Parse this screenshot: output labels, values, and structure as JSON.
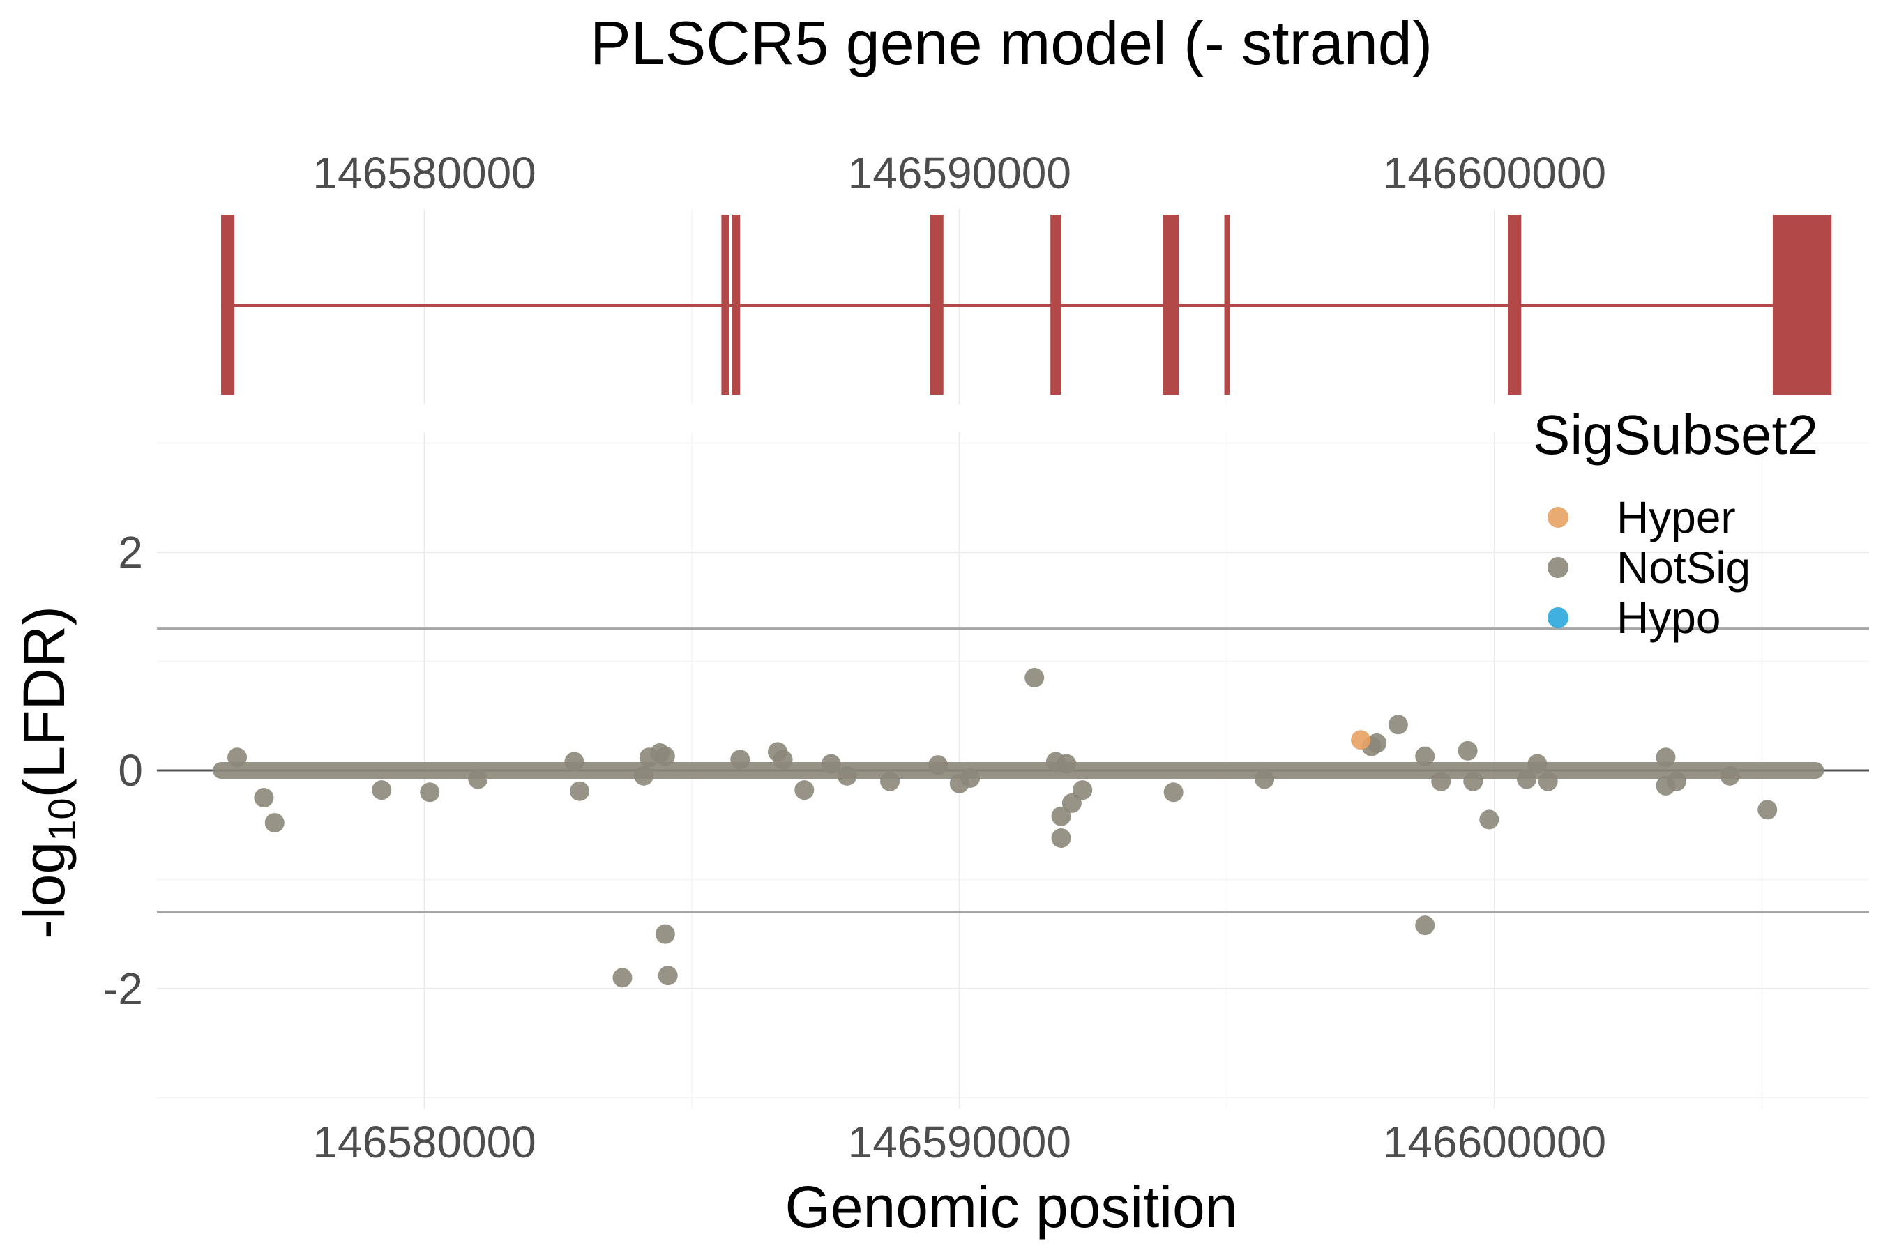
{
  "chart_data": [
    {
      "type": "gene_model",
      "title": "PLSCR5 gene model (- strand)",
      "xlim": [
        146575000,
        146607000
      ],
      "x_ticks": [
        146580000,
        146590000,
        146600000
      ],
      "tick_labels": [
        "146580000",
        "146590000",
        "146600000"
      ],
      "grid": true,
      "colors": {
        "exon": "#b34848",
        "intron": "#b34848"
      },
      "intron_span": [
        146576200,
        146606100
      ],
      "exons": [
        {
          "start": 146576200,
          "end": 146576450
        },
        {
          "start": 146585550,
          "end": 146585700
        },
        {
          "start": 146585750,
          "end": 146585900
        },
        {
          "start": 146589450,
          "end": 146589700
        },
        {
          "start": 146591700,
          "end": 146591900
        },
        {
          "start": 146593800,
          "end": 146594100
        },
        {
          "start": 146594950,
          "end": 146595050
        },
        {
          "start": 146600250,
          "end": 146600500
        },
        {
          "start": 146605200,
          "end": 146606300
        }
      ]
    },
    {
      "type": "scatter",
      "xlabel": "Genomic position",
      "ylabel_main": "-log",
      "ylabel_sub": "10",
      "ylabel_tail": "(LFDR)",
      "xlim": [
        146575000,
        146607000
      ],
      "ylim": [
        -3.1,
        3.1
      ],
      "x_ticks": [
        146580000,
        146590000,
        146600000
      ],
      "tick_labels": [
        "146580000",
        "146590000",
        "146600000"
      ],
      "y_ticks": [
        2,
        0,
        -2
      ],
      "y_tick_labels": [
        "2",
        "0",
        "-2"
      ],
      "grid": true,
      "reference_lines": [
        1.3,
        0,
        -1.3
      ],
      "legend": {
        "title": "SigSubset2",
        "position": "top-right",
        "entries": [
          {
            "name": "Hyper",
            "color": "#e8a263"
          },
          {
            "name": "NotSig",
            "color": "#8c877a"
          },
          {
            "name": "Hypo",
            "color": "#2aa7dc"
          }
        ]
      },
      "baseline_x_range": [
        146576200,
        146606000
      ],
      "series": [
        {
          "name": "NotSig",
          "color": "#8c877a",
          "points": [
            [
              146576500,
              0.12
            ],
            [
              146577000,
              -0.25
            ],
            [
              146577200,
              -0.48
            ],
            [
              146579200,
              -0.18
            ],
            [
              146580100,
              -0.2
            ],
            [
              146581000,
              -0.08
            ],
            [
              146582800,
              0.08
            ],
            [
              146582900,
              -0.19
            ],
            [
              146583700,
              -1.9
            ],
            [
              146584100,
              -0.05
            ],
            [
              146584200,
              0.12
            ],
            [
              146584400,
              0.16
            ],
            [
              146584500,
              0.13
            ],
            [
              146584550,
              -1.88
            ],
            [
              146584500,
              -1.5
            ],
            [
              146585900,
              0.1
            ],
            [
              146586600,
              0.17
            ],
            [
              146586700,
              0.1
            ],
            [
              146587100,
              -0.18
            ],
            [
              146587600,
              0.06
            ],
            [
              146587900,
              -0.05
            ],
            [
              146588700,
              -0.1
            ],
            [
              146589600,
              0.05
            ],
            [
              146590000,
              -0.12
            ],
            [
              146590200,
              -0.07
            ],
            [
              146591400,
              0.85
            ],
            [
              146591800,
              0.08
            ],
            [
              146591900,
              -0.42
            ],
            [
              146591900,
              -0.62
            ],
            [
              146592000,
              0.06
            ],
            [
              146592100,
              -0.3
            ],
            [
              146592300,
              -0.18
            ],
            [
              146594000,
              -0.2
            ],
            [
              146595700,
              -0.08
            ],
            [
              146597700,
              0.22
            ],
            [
              146597800,
              0.25
            ],
            [
              146598200,
              0.42
            ],
            [
              146598700,
              0.13
            ],
            [
              146598700,
              -1.42
            ],
            [
              146599000,
              -0.1
            ],
            [
              146599500,
              0.18
            ],
            [
              146599600,
              -0.1
            ],
            [
              146599900,
              -0.45
            ],
            [
              146600600,
              -0.08
            ],
            [
              146600800,
              0.06
            ],
            [
              146601000,
              -0.1
            ],
            [
              146603200,
              0.12
            ],
            [
              146603200,
              -0.14
            ],
            [
              146603400,
              -0.1
            ],
            [
              146604400,
              -0.05
            ],
            [
              146605100,
              -0.36
            ]
          ]
        },
        {
          "name": "Hyper",
          "color": "#e8a263",
          "points": [
            [
              146597500,
              0.28
            ]
          ]
        },
        {
          "name": "Hypo",
          "color": "#2aa7dc",
          "points": []
        }
      ]
    }
  ]
}
